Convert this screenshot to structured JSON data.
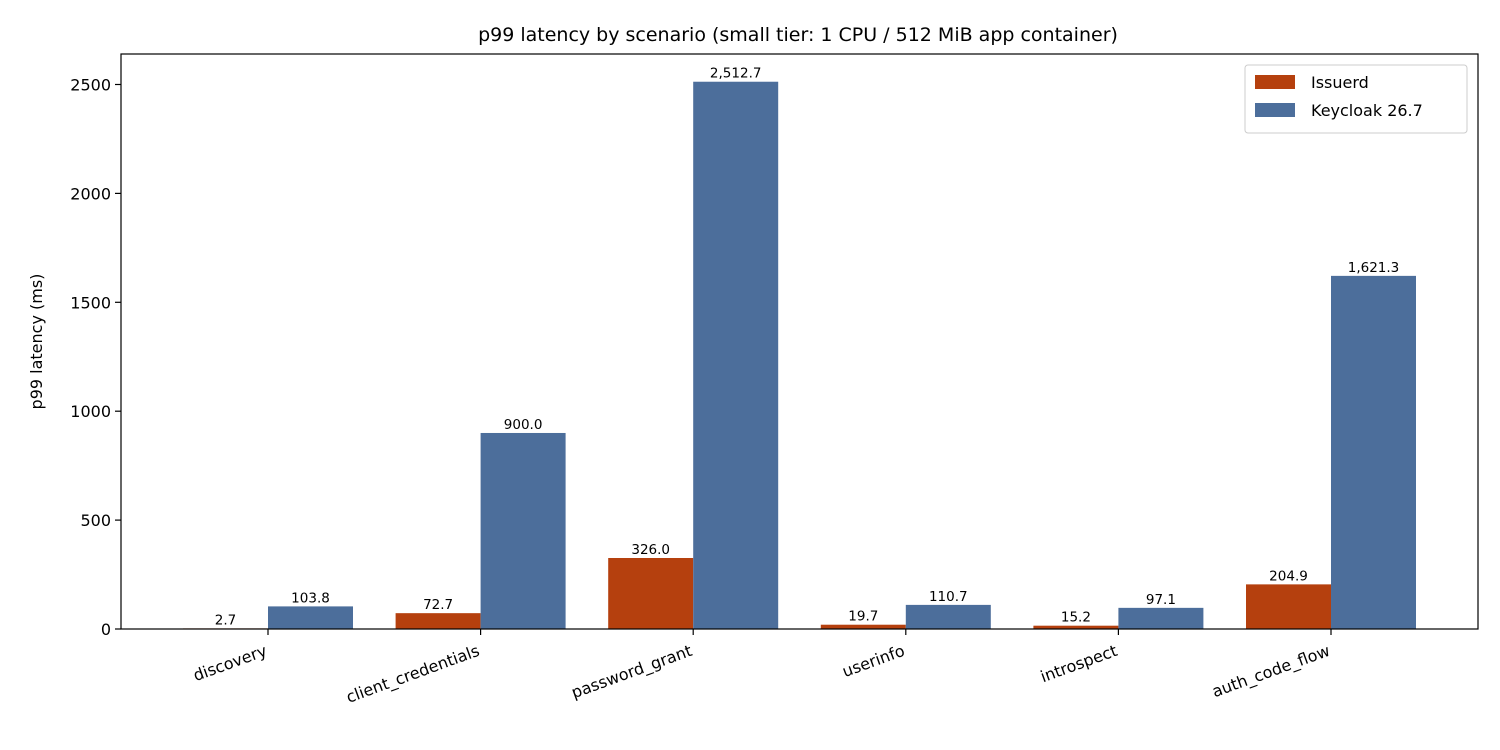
{
  "chart_data": {
    "type": "bar",
    "title": "p99 latency by scenario (small tier: 1 CPU / 512 MiB app container)",
    "xlabel": "",
    "ylabel": "p99 latency (ms)",
    "categories": [
      "discovery",
      "client_credentials",
      "password_grant",
      "userinfo",
      "introspect",
      "auth_code_flow"
    ],
    "series": [
      {
        "name": "Issuerd",
        "color": "#b5400e",
        "values": [
          2.7,
          72.7,
          326.0,
          19.7,
          15.2,
          204.9
        ],
        "labels": [
          "2.7",
          "72.7",
          "326.0",
          "19.7",
          "15.2",
          "204.9"
        ]
      },
      {
        "name": "Keycloak 26.7",
        "color": "#4c6e9b",
        "values": [
          103.8,
          900.0,
          2512.7,
          110.7,
          97.1,
          1621.3
        ],
        "labels": [
          "103.8",
          "900.0",
          "2,512.7",
          "110.7",
          "97.1",
          "1,621.3"
        ]
      }
    ],
    "ylim": [
      0,
      2640
    ],
    "yticks": [
      0,
      500,
      1000,
      1500,
      2000,
      2500
    ],
    "grid": false,
    "legend_position": "top-right"
  }
}
